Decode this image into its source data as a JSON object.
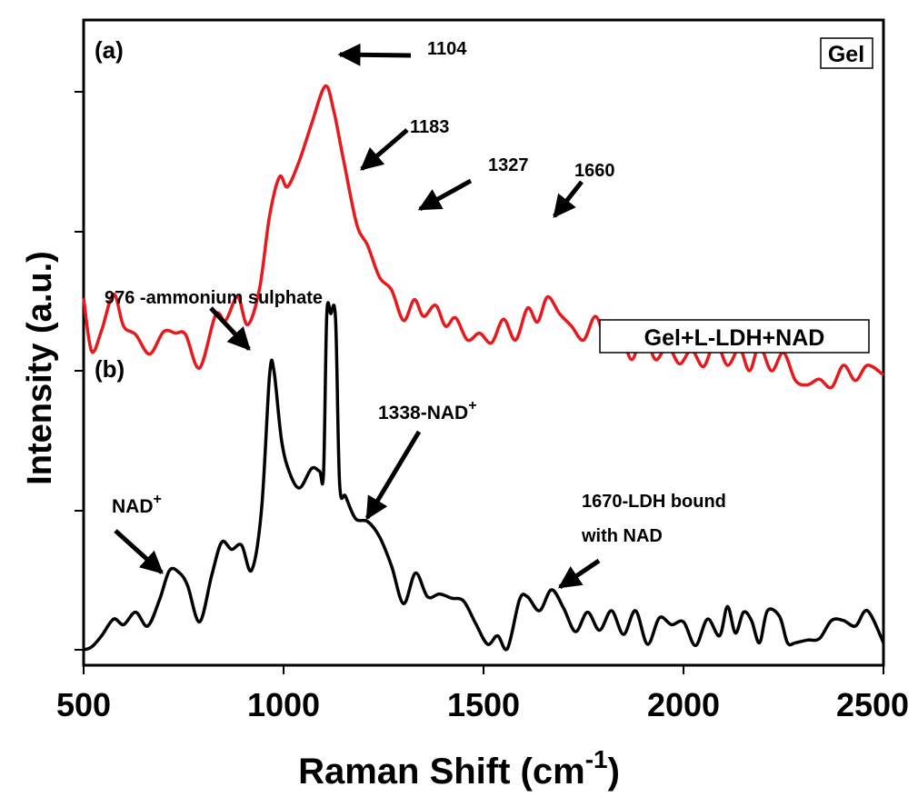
{
  "colors": {
    "gel": "#e8191d",
    "gel_ldh_nad": "#000000",
    "axis": "#000000"
  },
  "chart_data": {
    "type": "line",
    "xlabel": "Raman Shift (cm",
    "xlabel_sup": "-1",
    "xlabel_close": ")",
    "ylabel": "Intensity (a.u.)",
    "xlim": [
      500,
      2500
    ],
    "x_ticks": [
      "500",
      "1000",
      "1500",
      "2000",
      "2500"
    ],
    "grid": false,
    "legend": [
      {
        "name": "Gel",
        "position": "top-right"
      },
      {
        "name": "Gel+L-LDH+NAD",
        "position": "middle-right"
      }
    ],
    "panel_labels": [
      "(a)",
      "(b)"
    ],
    "series": [
      {
        "name": "Gel",
        "color": "#e8191d",
        "x": [
          500,
          520,
          545,
          575,
          600,
          630,
          665,
          700,
          730,
          755,
          790,
          830,
          855,
          885,
          910,
          940,
          965,
          990,
          1010,
          1040,
          1070,
          1104,
          1125,
          1150,
          1183,
          1210,
          1240,
          1270,
          1300,
          1327,
          1350,
          1380,
          1405,
          1430,
          1460,
          1490,
          1520,
          1550,
          1580,
          1610,
          1635,
          1660,
          1690,
          1720,
          1750,
          1780,
          1810,
          1840,
          1870,
          1900,
          1930,
          1960,
          1990,
          2020,
          2050,
          2080,
          2110,
          2140,
          2165,
          2190,
          2220,
          2250,
          2280,
          2310,
          2340,
          2370,
          2400,
          2430,
          2460,
          2500
        ],
        "y": [
          2.52,
          2.14,
          2.29,
          2.55,
          2.32,
          2.26,
          2.12,
          2.28,
          2.27,
          2.26,
          2.02,
          2.4,
          2.36,
          2.53,
          2.33,
          2.59,
          3.11,
          3.39,
          3.32,
          3.51,
          3.77,
          4.04,
          3.87,
          3.51,
          3.05,
          2.9,
          2.67,
          2.58,
          2.36,
          2.51,
          2.39,
          2.47,
          2.32,
          2.38,
          2.22,
          2.27,
          2.2,
          2.37,
          2.22,
          2.45,
          2.35,
          2.53,
          2.41,
          2.32,
          2.22,
          2.39,
          2.2,
          2.3,
          2.08,
          2.27,
          2.08,
          2.18,
          2.05,
          2.15,
          2.03,
          2.21,
          2.04,
          2.16,
          2.0,
          2.18,
          2.0,
          2.13,
          1.93,
          1.9,
          1.94,
          1.88,
          2.04,
          1.93,
          2.04,
          1.97
        ]
      },
      {
        "name": "Gel+L-LDH+NAD",
        "color": "#000000",
        "x": [
          500,
          520,
          545,
          575,
          600,
          630,
          660,
          690,
          715,
          740,
          760,
          790,
          820,
          845,
          870,
          895,
          920,
          945,
          965,
          976,
          995,
          1015,
          1040,
          1070,
          1090,
          1100,
          1108,
          1118,
          1130,
          1140,
          1155,
          1180,
          1210,
          1240,
          1270,
          1300,
          1330,
          1360,
          1390,
          1420,
          1450,
          1480,
          1510,
          1535,
          1560,
          1590,
          1610,
          1640,
          1670,
          1700,
          1730,
          1760,
          1790,
          1820,
          1850,
          1880,
          1910,
          1940,
          1970,
          2000,
          2030,
          2060,
          2090,
          2110,
          2130,
          2150,
          2170,
          2190,
          2210,
          2240,
          2260,
          2280,
          2310,
          2340,
          2370,
          2400,
          2430,
          2460,
          2500
        ],
        "y": [
          0.0,
          0.02,
          0.1,
          0.22,
          0.18,
          0.27,
          0.17,
          0.36,
          0.57,
          0.55,
          0.46,
          0.2,
          0.53,
          0.77,
          0.72,
          0.75,
          0.57,
          1.01,
          1.97,
          2.0,
          1.5,
          1.27,
          1.16,
          1.3,
          1.28,
          1.27,
          2.4,
          2.41,
          2.37,
          1.2,
          1.1,
          0.94,
          0.92,
          0.81,
          0.6,
          0.33,
          0.55,
          0.38,
          0.4,
          0.37,
          0.35,
          0.19,
          0.04,
          0.1,
          0.01,
          0.36,
          0.38,
          0.28,
          0.43,
          0.3,
          0.13,
          0.27,
          0.14,
          0.28,
          0.11,
          0.28,
          0.04,
          0.23,
          0.18,
          0.2,
          0.03,
          0.22,
          0.1,
          0.31,
          0.12,
          0.27,
          0.21,
          0.05,
          0.28,
          0.24,
          0.05,
          0.05,
          0.07,
          0.08,
          0.21,
          0.21,
          0.17,
          0.28,
          0.05
        ]
      }
    ],
    "annotations": [
      {
        "id": "a1104",
        "text": "1104"
      },
      {
        "id": "a1183",
        "text": "1183"
      },
      {
        "id": "a1327",
        "text": "1327"
      },
      {
        "id": "a1660",
        "text": "1660"
      },
      {
        "id": "a976",
        "text": "976 -ammonium sulphate"
      },
      {
        "id": "a1338",
        "text": "1338-NAD",
        "sup": "+"
      },
      {
        "id": "anad",
        "text": "NAD",
        "sup": "+"
      },
      {
        "id": "a1670",
        "lines": [
          "1670-LDH bound",
          "with NAD"
        ]
      }
    ]
  }
}
